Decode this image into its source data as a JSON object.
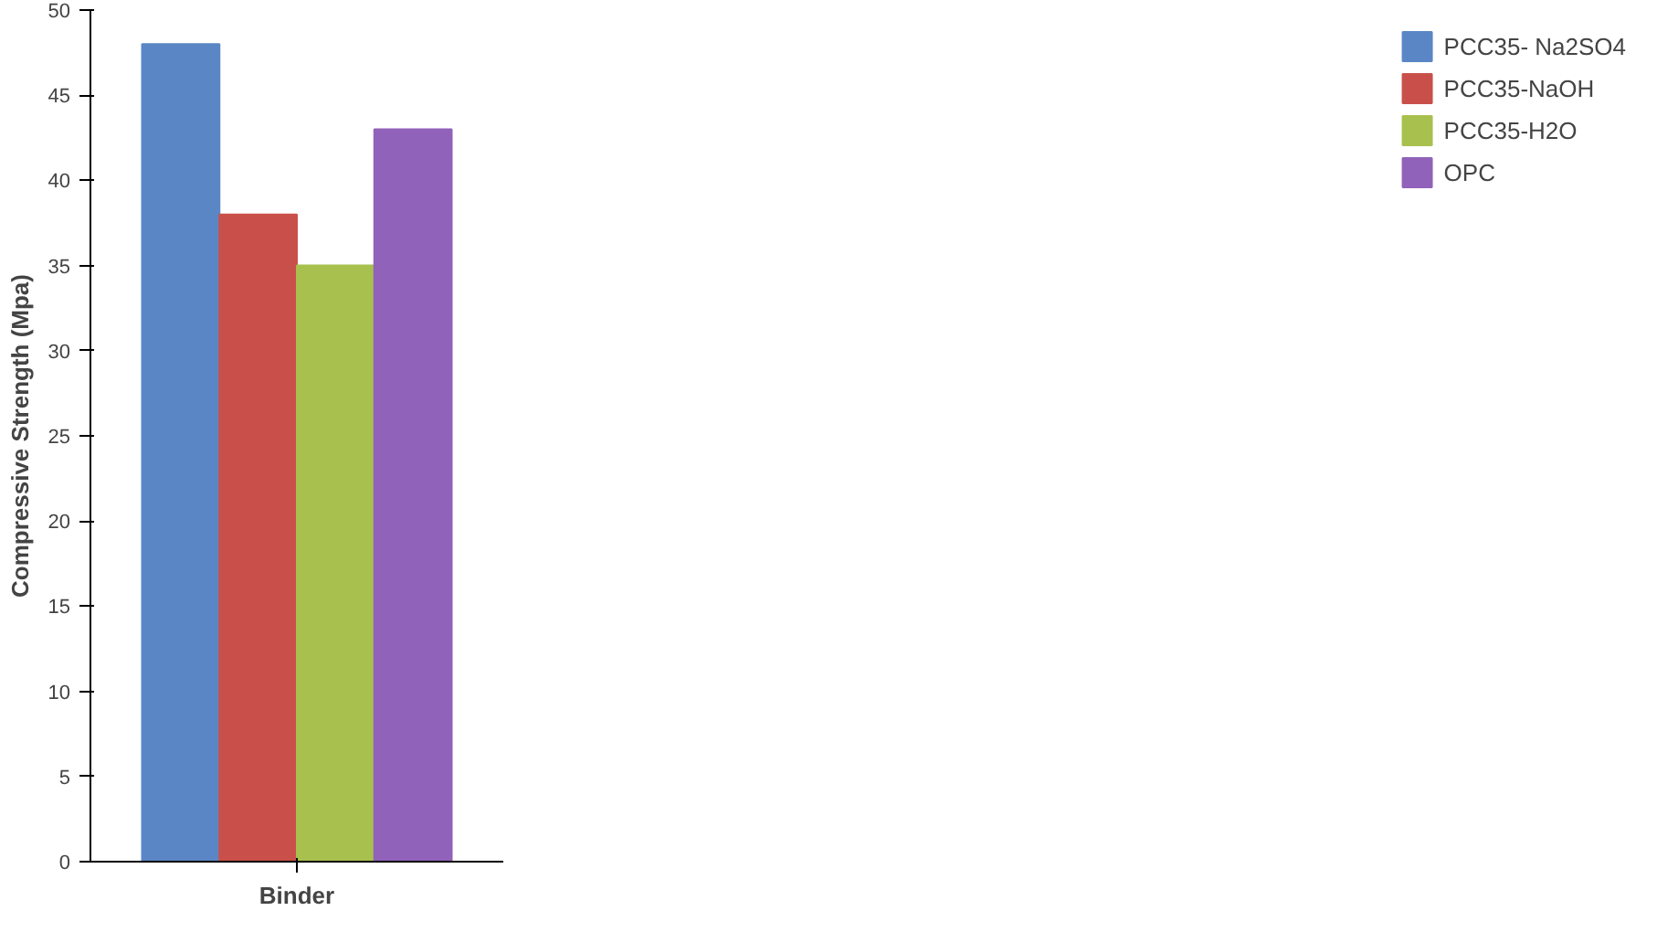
{
  "chart_data": {
    "type": "bar",
    "xlabel": "Binder",
    "ylabel": "Compressive Strength (Mpa)",
    "categories": [
      null
    ],
    "series": [
      {
        "name": "PCC35- Na2SO4",
        "color": "#5b86c6",
        "values": [
          48
        ]
      },
      {
        "name": "PCC35-NaOH",
        "color": "#c9504a",
        "values": [
          38
        ]
      },
      {
        "name": "PCC35-H2O",
        "color": "#a8c04e",
        "values": [
          35
        ]
      },
      {
        "name": "OPC",
        "color": "#9162b9",
        "values": [
          43
        ]
      }
    ],
    "ylim": [
      0,
      50
    ],
    "yticks": [
      0,
      5,
      10,
      15,
      20,
      25,
      30,
      35,
      40,
      45,
      50
    ],
    "grid": false,
    "legend": "right",
    "tick_labels": "y"
  }
}
